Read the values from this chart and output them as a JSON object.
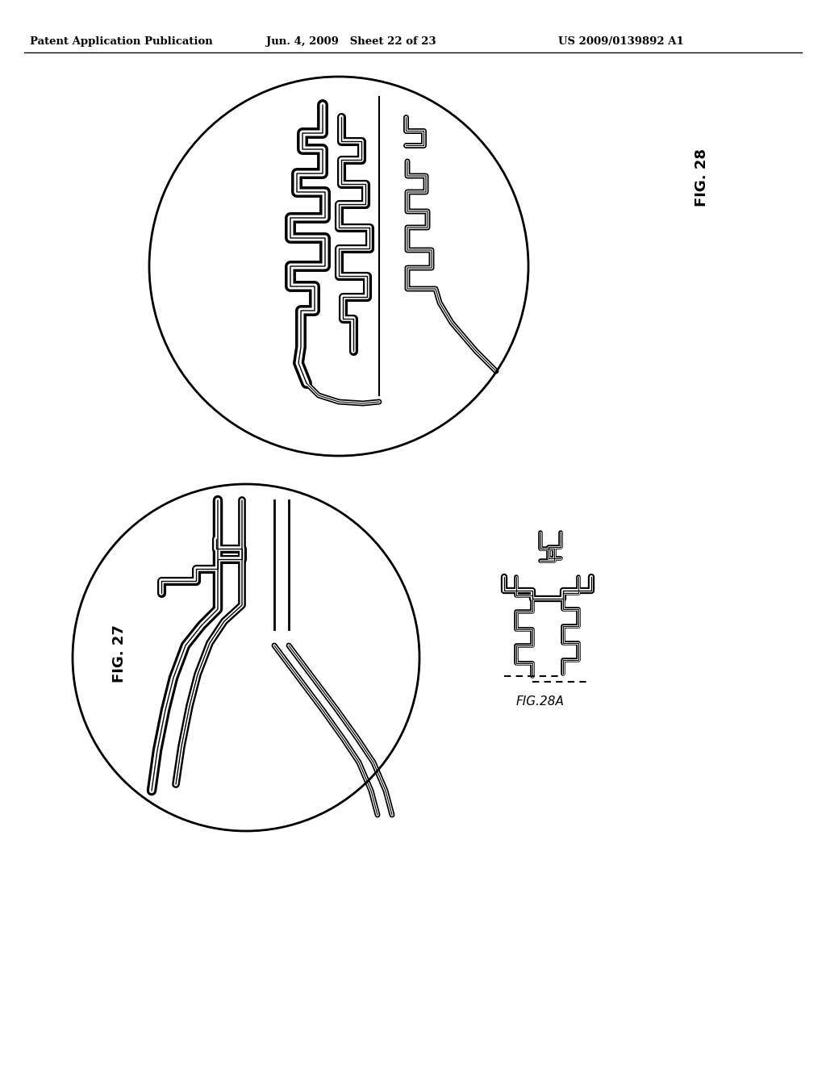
{
  "title_left": "Patent Application Publication",
  "title_mid": "Jun. 4, 2009   Sheet 22 of 23",
  "title_right": "US 2009/0139892 A1",
  "fig27_label": "FIG. 27",
  "fig28_label": "FIG. 28",
  "fig28a_label": "FIG.28A",
  "background_color": "#ffffff",
  "line_color": "#000000"
}
